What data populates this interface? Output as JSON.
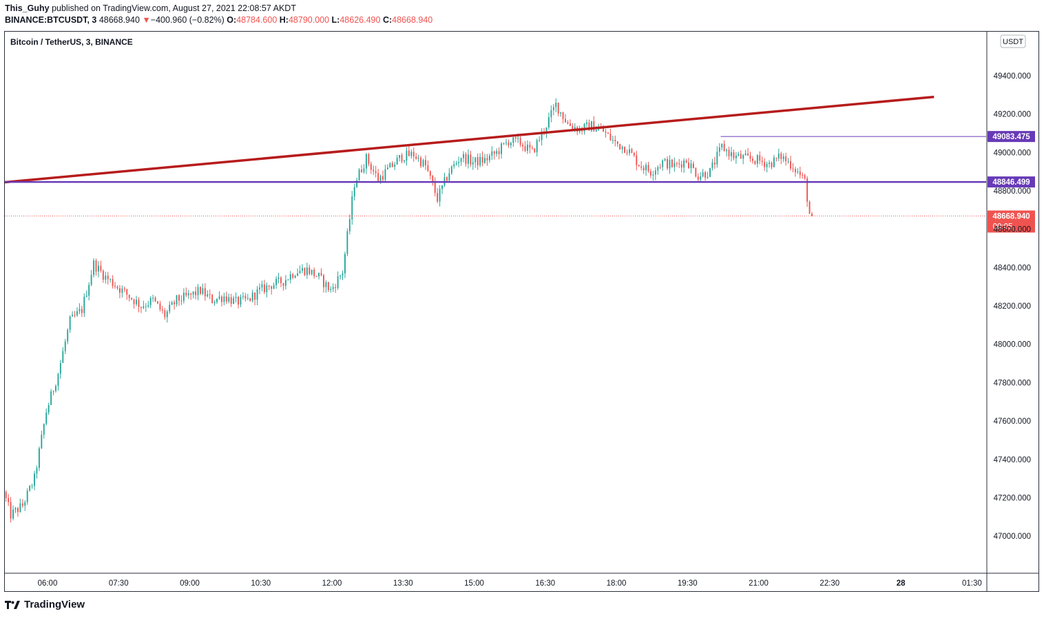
{
  "header": {
    "author": "This_Guhy",
    "published_text": "published on TradingView.com, August 27, 2021 22:08:57 AKDT",
    "symbol": "BINANCE:BTCUSDT, 3",
    "last": "48668.940",
    "change_arrow": "▼",
    "change": "−400.960 (−0.82%)",
    "o_label": "O:",
    "o": "48784.600",
    "h_label": "H:",
    "h": "48790.000",
    "l_label": "L:",
    "l": "48626.490",
    "c_label": "C:",
    "c": "48668.940"
  },
  "footer": {
    "brand": "TradingView"
  },
  "colors": {
    "up": "#26a69a",
    "down": "#ef5350",
    "trendline": "#b71c1c",
    "level": "#673ab7",
    "price_tag": "#ef5350",
    "text": "#131722"
  },
  "chart_data": {
    "type": "candlestick",
    "title": "Bitcoin / TetherUS, 3, BINANCE",
    "currency_label": "USDT",
    "y_ticks": [
      49400,
      49200,
      49000,
      48800,
      48600,
      48400,
      48200,
      48000,
      47800,
      47600,
      47400,
      47200,
      47000
    ],
    "y_tick_labels": [
      "49400.000",
      "49200.000",
      "49000.000",
      "48800.000",
      "48600.000",
      "48400.000",
      "48200.000",
      "48000.000",
      "47800.000",
      "47600.000",
      "47400.000",
      "47200.000",
      "47000.000"
    ],
    "ylim": [
      46810,
      49630
    ],
    "x_tick_labels": [
      "06:00",
      "07:30",
      "09:00",
      "10:30",
      "12:00",
      "13:30",
      "15:00",
      "16:30",
      "18:00",
      "19:30",
      "21:00",
      "22:30",
      "28",
      "01:30"
    ],
    "x_tick_times": [
      "2021-08-27 06:00",
      "2021-08-27 07:30",
      "2021-08-27 09:00",
      "2021-08-27 10:30",
      "2021-08-27 12:00",
      "2021-08-27 13:30",
      "2021-08-27 15:00",
      "2021-08-27 16:30",
      "2021-08-27 18:00",
      "2021-08-27 19:30",
      "2021-08-27 21:00",
      "2021-08-27 22:30",
      "2021-08-28 00:00",
      "2021-08-28 01:30"
    ],
    "x_range": [
      "2021-08-27 05:06",
      "2021-08-28 01:48"
    ],
    "candle_interval_minutes": 3,
    "price_path": [
      [
        "2021-08-27 05:06",
        47230
      ],
      [
        "2021-08-27 05:15",
        47110
      ],
      [
        "2021-08-27 05:30",
        47160
      ],
      [
        "2021-08-27 05:45",
        47300
      ],
      [
        "2021-08-27 06:00",
        47650
      ],
      [
        "2021-08-27 06:15",
        47850
      ],
      [
        "2021-08-27 06:30",
        48120
      ],
      [
        "2021-08-27 06:45",
        48180
      ],
      [
        "2021-08-27 07:00",
        48420
      ],
      [
        "2021-08-27 07:15",
        48350
      ],
      [
        "2021-08-27 07:30",
        48300
      ],
      [
        "2021-08-27 07:45",
        48250
      ],
      [
        "2021-08-27 08:00",
        48200
      ],
      [
        "2021-08-27 08:15",
        48230
      ],
      [
        "2021-08-27 08:30",
        48150
      ],
      [
        "2021-08-27 08:45",
        48230
      ],
      [
        "2021-08-27 09:00",
        48250
      ],
      [
        "2021-08-27 09:15",
        48280
      ],
      [
        "2021-08-27 09:30",
        48230
      ],
      [
        "2021-08-27 09:45",
        48250
      ],
      [
        "2021-08-27 10:00",
        48220
      ],
      [
        "2021-08-27 10:15",
        48230
      ],
      [
        "2021-08-27 10:30",
        48280
      ],
      [
        "2021-08-27 10:45",
        48310
      ],
      [
        "2021-08-27 11:00",
        48330
      ],
      [
        "2021-08-27 11:15",
        48380
      ],
      [
        "2021-08-27 11:30",
        48390
      ],
      [
        "2021-08-27 11:45",
        48350
      ],
      [
        "2021-08-27 12:00",
        48280
      ],
      [
        "2021-08-27 12:15",
        48380
      ],
      [
        "2021-08-27 12:30",
        48840
      ],
      [
        "2021-08-27 12:45",
        48970
      ],
      [
        "2021-08-27 13:00",
        48860
      ],
      [
        "2021-08-27 13:15",
        48920
      ],
      [
        "2021-08-27 13:30",
        48980
      ],
      [
        "2021-08-27 13:45",
        48990
      ],
      [
        "2021-08-27 14:00",
        48930
      ],
      [
        "2021-08-27 14:15",
        48760
      ],
      [
        "2021-08-27 14:30",
        48900
      ],
      [
        "2021-08-27 14:45",
        48980
      ],
      [
        "2021-08-27 15:00",
        48950
      ],
      [
        "2021-08-27 15:15",
        48960
      ],
      [
        "2021-08-27 15:30",
        49000
      ],
      [
        "2021-08-27 15:45",
        49060
      ],
      [
        "2021-08-27 16:00",
        49050
      ],
      [
        "2021-08-27 16:15",
        49000
      ],
      [
        "2021-08-27 16:30",
        49120
      ],
      [
        "2021-08-27 16:45",
        49250
      ],
      [
        "2021-08-27 17:00",
        49150
      ],
      [
        "2021-08-27 17:15",
        49120
      ],
      [
        "2021-08-27 17:30",
        49140
      ],
      [
        "2021-08-27 17:45",
        49110
      ],
      [
        "2021-08-27 18:00",
        49050
      ],
      [
        "2021-08-27 18:15",
        49020
      ],
      [
        "2021-08-27 18:30",
        48940
      ],
      [
        "2021-08-27 18:45",
        48900
      ],
      [
        "2021-08-27 19:00",
        48950
      ],
      [
        "2021-08-27 19:15",
        48930
      ],
      [
        "2021-08-27 19:30",
        48960
      ],
      [
        "2021-08-27 19:45",
        48880
      ],
      [
        "2021-08-27 20:00",
        48900
      ],
      [
        "2021-08-27 20:15",
        49030
      ],
      [
        "2021-08-27 20:30",
        48980
      ],
      [
        "2021-08-27 20:45",
        48970
      ],
      [
        "2021-08-27 21:00",
        48960
      ],
      [
        "2021-08-27 21:15",
        48940
      ],
      [
        "2021-08-27 21:30",
        48980
      ],
      [
        "2021-08-27 21:45",
        48930
      ],
      [
        "2021-08-27 22:00",
        48850
      ],
      [
        "2021-08-27 22:06",
        48680
      ],
      [
        "2021-08-27 22:08",
        48669
      ]
    ],
    "trendline": {
      "start": [
        "2021-08-27 05:06",
        48845
      ],
      "end": [
        "2021-08-28 00:42",
        49290
      ],
      "color": "#b71c1c"
    },
    "levels": [
      {
        "price": 48846.499,
        "label": "48846.499",
        "color": "#673ab7",
        "from": "2021-08-27 05:06",
        "full_width": true
      },
      {
        "price": 49083.475,
        "label": "49083.475",
        "color": "#673ab7",
        "from": "2021-08-27 20:12",
        "full_width": false
      }
    ],
    "last_price": {
      "price": 48668.94,
      "label": "48668.940",
      "countdown": "00:05",
      "color": "#ef5350"
    },
    "grid": false,
    "legend": "none"
  }
}
